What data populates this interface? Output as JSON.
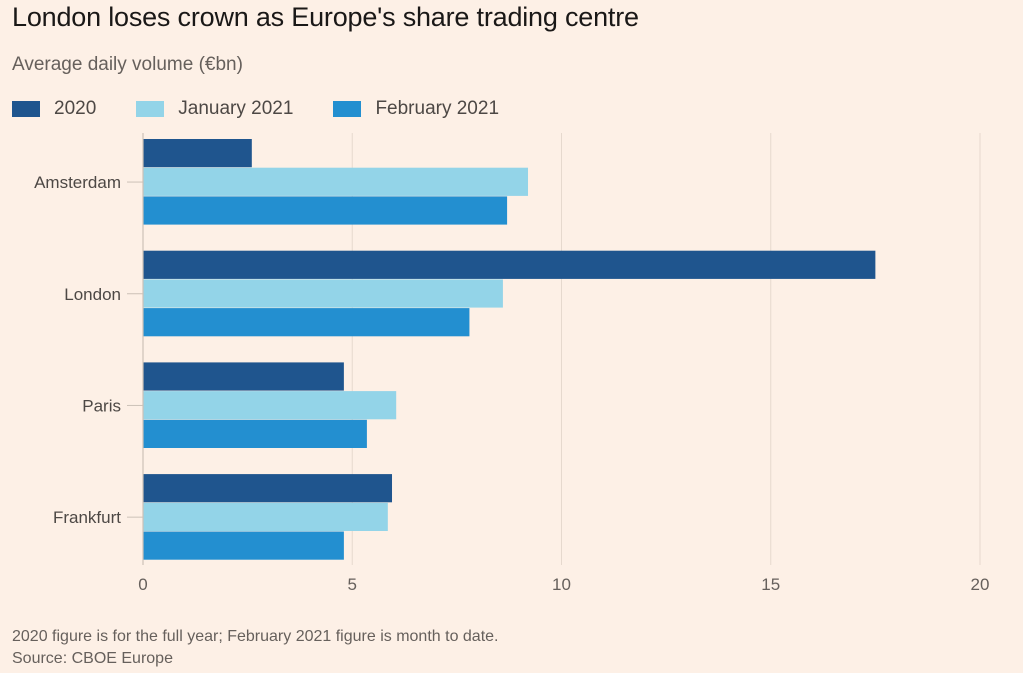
{
  "title": "London loses crown as Europe's share trading centre",
  "subtitle": "Average daily volume (€bn)",
  "footnote": "2020 figure is for the full year; February 2021 figure is month to date.",
  "source": "Source: CBOE Europe",
  "chart_data": {
    "type": "bar",
    "orientation": "horizontal",
    "title": "London loses crown as Europe's share trading centre",
    "subtitle": "Average daily volume (€bn)",
    "xlabel": "",
    "ylabel": "",
    "categories": [
      "Amsterdam",
      "London",
      "Paris",
      "Frankfurt"
    ],
    "series": [
      {
        "name": "2020",
        "color": "#1f558e",
        "values": [
          2.6,
          17.5,
          4.8,
          5.95
        ]
      },
      {
        "name": "January 2021",
        "color": "#93d4e8",
        "values": [
          9.2,
          8.6,
          6.05,
          5.85
        ]
      },
      {
        "name": "February 2021",
        "color": "#238fd0",
        "values": [
          8.7,
          7.8,
          5.35,
          4.8
        ]
      }
    ],
    "xlim": [
      0,
      20
    ],
    "xticks": [
      "0",
      "5",
      "10",
      "15",
      "20"
    ],
    "xtick_values": [
      0,
      5,
      10,
      15,
      20
    ],
    "grid": true,
    "legend_position": "top-left"
  }
}
